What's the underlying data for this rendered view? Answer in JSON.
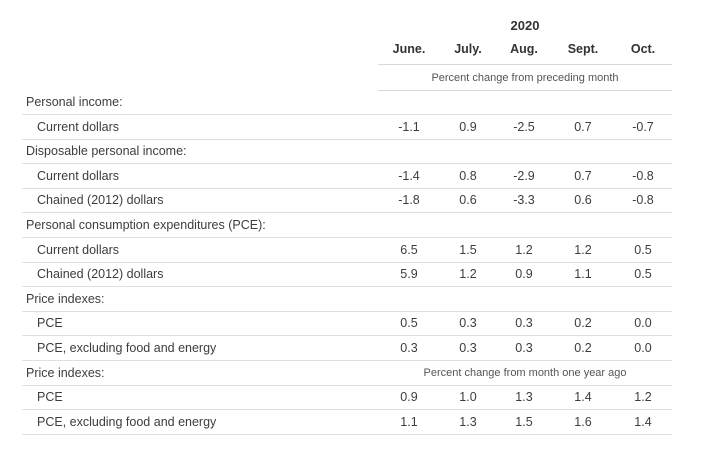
{
  "header": {
    "year": "2020",
    "months": [
      "June.",
      "July.",
      "Aug.",
      "Sept.",
      "Oct."
    ],
    "unit_note": "Percent change from preceding month"
  },
  "rows": [
    {
      "kind": "section",
      "label": "Personal income:"
    },
    {
      "kind": "item",
      "label": "Current dollars",
      "values": [
        "-1.1",
        "0.9",
        "-2.5",
        "0.7",
        "-0.7"
      ]
    },
    {
      "kind": "section",
      "label": "Disposable personal income:"
    },
    {
      "kind": "item",
      "label": "Current dollars",
      "values": [
        "-1.4",
        "0.8",
        "-2.9",
        "0.7",
        "-0.8"
      ]
    },
    {
      "kind": "item",
      "label": "Chained (2012) dollars",
      "values": [
        "-1.8",
        "0.6",
        "-3.3",
        "0.6",
        "-0.8"
      ]
    },
    {
      "kind": "section",
      "label": "Personal consumption expenditures (PCE):"
    },
    {
      "kind": "item",
      "label": "Current dollars",
      "values": [
        "6.5",
        "1.5",
        "1.2",
        "1.2",
        "0.5"
      ]
    },
    {
      "kind": "item",
      "label": "Chained (2012) dollars",
      "values": [
        "5.9",
        "1.2",
        "0.9",
        "1.1",
        "0.5"
      ]
    },
    {
      "kind": "section",
      "label": "Price indexes:"
    },
    {
      "kind": "item",
      "label": "PCE",
      "values": [
        "0.5",
        "0.3",
        "0.3",
        "0.2",
        "0.0"
      ]
    },
    {
      "kind": "item",
      "label": "PCE, excluding food and energy",
      "values": [
        "0.3",
        "0.3",
        "0.3",
        "0.2",
        "0.0"
      ]
    },
    {
      "kind": "section",
      "label": "Price indexes:",
      "note": "Percent change from month one year ago"
    },
    {
      "kind": "item",
      "label": "PCE",
      "values": [
        "0.9",
        "1.0",
        "1.3",
        "1.4",
        "1.2"
      ]
    },
    {
      "kind": "item",
      "label": "PCE, excluding food and energy",
      "values": [
        "1.1",
        "1.3",
        "1.5",
        "1.6",
        "1.4"
      ]
    }
  ]
}
